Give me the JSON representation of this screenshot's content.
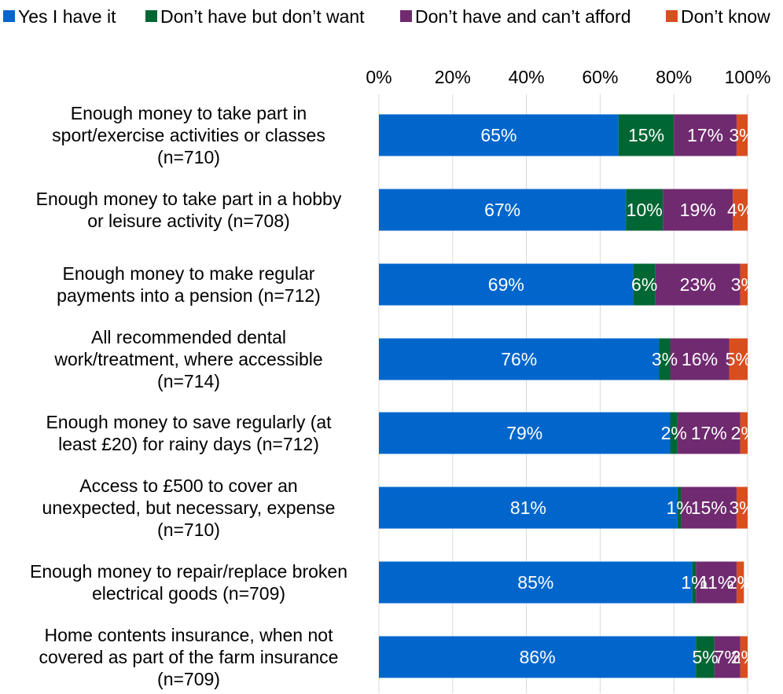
{
  "chart_data": {
    "type": "bar",
    "orientation": "horizontal",
    "stacked": true,
    "title": "",
    "xlabel": "",
    "ylabel": "",
    "xlim": [
      0,
      100
    ],
    "x_ticks": [
      "0%",
      "20%",
      "40%",
      "60%",
      "80%",
      "100%"
    ],
    "x_tick_values": [
      0,
      20,
      40,
      60,
      80,
      100
    ],
    "x_axis_position": "top",
    "grid": true,
    "legend_position": "top",
    "categories": [
      [
        "Enough money to take part in",
        "sport/exercise activities or classes",
        "(n=710)"
      ],
      [
        "Enough money to take part in a hobby",
        "or leisure activity (n=708)"
      ],
      [
        "Enough money to make regular",
        "payments into a pension (n=712)"
      ],
      [
        "All recommended dental",
        "work/treatment, where accessible",
        "(n=714)"
      ],
      [
        "Enough money to save regularly (at",
        "least £20) for rainy days (n=712)"
      ],
      [
        "Access to £500 to cover an",
        "unexpected, but necessary, expense",
        "(n=710)"
      ],
      [
        "Enough money to repair/replace broken",
        "electrical goods (n=709)"
      ],
      [
        "Home contents insurance, when not",
        "covered as part of the farm insurance",
        "(n=709)"
      ]
    ],
    "series": [
      {
        "name": "Yes I have it",
        "color": "#0066CC",
        "values": [
          65,
          67,
          69,
          76,
          79,
          81,
          85,
          86
        ],
        "labels": [
          "65%",
          "67%",
          "69%",
          "76%",
          "79%",
          "81%",
          "85%",
          "86%"
        ]
      },
      {
        "name": "Don’t have but don’t want",
        "color": "#006633",
        "values": [
          15,
          10,
          6,
          3,
          2,
          1,
          1,
          5
        ],
        "labels": [
          "15%",
          "10%",
          "6%",
          "3%",
          "2%",
          "1%",
          "1%",
          "5%"
        ]
      },
      {
        "name": "Don’t have and can’t afford",
        "color": "#702A70",
        "values": [
          17,
          19,
          23,
          16,
          17,
          15,
          11,
          7
        ],
        "labels": [
          "17%",
          "19%",
          "23%",
          "16%",
          "17%",
          "15%",
          "11%",
          "7%"
        ]
      },
      {
        "name": "Don’t know",
        "color": "#D94E1F",
        "values": [
          3,
          4,
          3,
          5,
          2,
          3,
          2,
          2
        ],
        "labels": [
          "3%",
          "4%",
          "3%",
          "5%",
          "2%",
          "3%",
          "2%",
          "2%"
        ]
      }
    ]
  }
}
